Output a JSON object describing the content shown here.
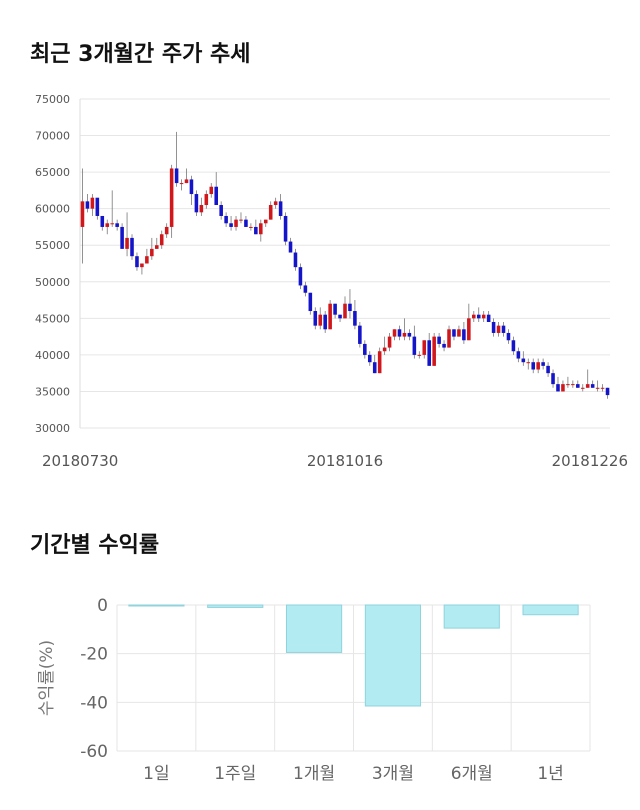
{
  "sections": {
    "price_title": "최근 3개월간 주가 추세",
    "returns_title": "기간별 수익률"
  },
  "colors": {
    "up": "#d0171c",
    "down": "#1414c8",
    "bar_fill": "#b2ebf2",
    "bar_stroke": "#8fd3dd",
    "grid": "#e6e6e6"
  },
  "chart_data": [
    {
      "type": "candlestick",
      "title": "최근 3개월간 주가 추세",
      "ylim": [
        30000,
        75000
      ],
      "y_ticks": [
        75000,
        70000,
        65000,
        60000,
        55000,
        50000,
        45000,
        40000,
        35000,
        30000
      ],
      "x_tick_labels": [
        {
          "index": 0,
          "label": "20180730"
        },
        {
          "index": 53,
          "label": "20181016"
        },
        {
          "index": 106,
          "label": "20181226"
        }
      ],
      "candles": [
        [
          57500,
          61000,
          65500,
          52500
        ],
        [
          61000,
          60000,
          62000,
          59500
        ],
        [
          60000,
          61500,
          62000,
          59000
        ],
        [
          61500,
          59000,
          61000,
          58500
        ],
        [
          59000,
          57500,
          59000,
          57000
        ],
        [
          57500,
          58000,
          58500,
          56500
        ],
        [
          58000,
          58000,
          62500,
          57500
        ],
        [
          58000,
          57500,
          58500,
          57000
        ],
        [
          57500,
          54500,
          58000,
          54500
        ],
        [
          54500,
          56000,
          59500,
          53500
        ],
        [
          56000,
          53500,
          56500,
          53000
        ],
        [
          53500,
          52000,
          54000,
          51500
        ],
        [
          52000,
          52500,
          52500,
          51000
        ],
        [
          52500,
          53500,
          54500,
          52500
        ],
        [
          53500,
          54500,
          56000,
          53000
        ],
        [
          54500,
          55000,
          56000,
          54500
        ],
        [
          55000,
          56500,
          57000,
          54500
        ],
        [
          56500,
          57500,
          58000,
          56000
        ],
        [
          57500,
          65500,
          66000,
          56000
        ],
        [
          65500,
          63500,
          70500,
          63000
        ],
        [
          63500,
          63500,
          64000,
          62500
        ],
        [
          63500,
          64000,
          65500,
          63500
        ],
        [
          64000,
          62000,
          64500,
          60500
        ],
        [
          62000,
          59500,
          62500,
          59000
        ],
        [
          59500,
          60500,
          61500,
          59000
        ],
        [
          60500,
          62000,
          62500,
          60000
        ],
        [
          62000,
          63000,
          63500,
          61500
        ],
        [
          63000,
          60500,
          65000,
          60500
        ],
        [
          60500,
          59000,
          61000,
          58500
        ],
        [
          59000,
          58000,
          59500,
          57500
        ],
        [
          58000,
          57500,
          59000,
          57000
        ],
        [
          57500,
          58500,
          59000,
          57000
        ],
        [
          58500,
          58500,
          59500,
          58000
        ],
        [
          58500,
          57500,
          59000,
          57500
        ],
        [
          57500,
          57500,
          58000,
          57000
        ],
        [
          57500,
          56500,
          58500,
          56500
        ],
        [
          56500,
          58000,
          58500,
          55500
        ],
        [
          58000,
          58500,
          58500,
          57500
        ],
        [
          58500,
          60500,
          61000,
          58500
        ],
        [
          60500,
          61000,
          61500,
          60000
        ],
        [
          61000,
          59000,
          62000,
          58500
        ],
        [
          59000,
          55500,
          59500,
          55000
        ],
        [
          55500,
          54000,
          56000,
          54000
        ],
        [
          54000,
          52000,
          54500,
          51500
        ],
        [
          52000,
          49500,
          52500,
          49000
        ],
        [
          49500,
          48500,
          50000,
          48000
        ],
        [
          48500,
          46000,
          48500,
          45500
        ],
        [
          46000,
          44000,
          46500,
          43500
        ],
        [
          44000,
          45500,
          46500,
          43500
        ],
        [
          45500,
          43500,
          46000,
          43000
        ],
        [
          43500,
          47000,
          47500,
          43500
        ],
        [
          47000,
          45500,
          47000,
          45000
        ],
        [
          45500,
          45000,
          45500,
          44500
        ],
        [
          45000,
          47000,
          48000,
          45000
        ],
        [
          47000,
          46000,
          49000,
          45000
        ],
        [
          46000,
          44000,
          47500,
          43500
        ],
        [
          44000,
          41500,
          44500,
          41000
        ],
        [
          41500,
          40000,
          42000,
          39500
        ],
        [
          40000,
          39000,
          40500,
          38500
        ],
        [
          39000,
          37500,
          40000,
          37500
        ],
        [
          37500,
          40500,
          41000,
          37500
        ],
        [
          40500,
          41000,
          42500,
          40000
        ],
        [
          41000,
          42500,
          43000,
          40500
        ],
        [
          42500,
          43500,
          43500,
          42000
        ],
        [
          43500,
          42500,
          44000,
          42000
        ],
        [
          42500,
          43000,
          45000,
          42000
        ],
        [
          43000,
          42500,
          43500,
          42000
        ],
        [
          42500,
          40000,
          44000,
          39500
        ],
        [
          40000,
          40000,
          40500,
          39500
        ],
        [
          40000,
          42000,
          42000,
          39500
        ],
        [
          42000,
          38500,
          43000,
          38500
        ],
        [
          38500,
          42500,
          43000,
          38500
        ],
        [
          42500,
          41500,
          43000,
          41000
        ],
        [
          41500,
          41000,
          42000,
          40500
        ],
        [
          41000,
          43500,
          44000,
          41000
        ],
        [
          43500,
          42500,
          43500,
          42000
        ],
        [
          42500,
          43500,
          44000,
          42500
        ],
        [
          43500,
          42000,
          44500,
          41500
        ],
        [
          42000,
          45000,
          47000,
          42000
        ],
        [
          45000,
          45500,
          46000,
          44500
        ],
        [
          45500,
          45000,
          46500,
          44500
        ],
        [
          45000,
          45500,
          46000,
          44500
        ],
        [
          45500,
          44500,
          46000,
          44500
        ],
        [
          44500,
          43000,
          45000,
          42500
        ],
        [
          43000,
          44000,
          44500,
          42500
        ],
        [
          44000,
          43000,
          44500,
          42500
        ],
        [
          43000,
          42000,
          43500,
          41500
        ],
        [
          42000,
          40500,
          42500,
          40000
        ],
        [
          40500,
          39500,
          41000,
          39000
        ],
        [
          39500,
          39000,
          40500,
          38500
        ],
        [
          39000,
          39000,
          39500,
          38000
        ],
        [
          39000,
          38000,
          39500,
          37500
        ],
        [
          38000,
          39000,
          39500,
          37500
        ],
        [
          39000,
          38500,
          39500,
          38000
        ],
        [
          38500,
          37500,
          39000,
          37000
        ],
        [
          37500,
          36000,
          38000,
          35500
        ],
        [
          36000,
          35000,
          37000,
          35000
        ],
        [
          35000,
          36000,
          36500,
          35000
        ],
        [
          36000,
          36000,
          37000,
          35500
        ],
        [
          36000,
          36000,
          36500,
          35500
        ],
        [
          36000,
          35500,
          36500,
          35500
        ],
        [
          35500,
          35500,
          36000,
          35000
        ],
        [
          35500,
          36000,
          38000,
          35500
        ],
        [
          36000,
          35500,
          36500,
          35500
        ],
        [
          35500,
          35500,
          36500,
          35000
        ],
        [
          35500,
          35500,
          36000,
          35000
        ],
        [
          35500,
          34500,
          35500,
          34000
        ]
      ]
    },
    {
      "type": "bar",
      "title": "기간별 수익률",
      "ylabel": "수익률(%)",
      "categories": [
        "1일",
        "1주일",
        "1개월",
        "3개월",
        "6개월",
        "1년"
      ],
      "values": [
        0,
        -1,
        -19.5,
        -41.5,
        -9.5,
        -4
      ],
      "ylim": [
        -60,
        0
      ],
      "y_ticks": [
        0,
        -20,
        -40,
        -60
      ]
    }
  ]
}
